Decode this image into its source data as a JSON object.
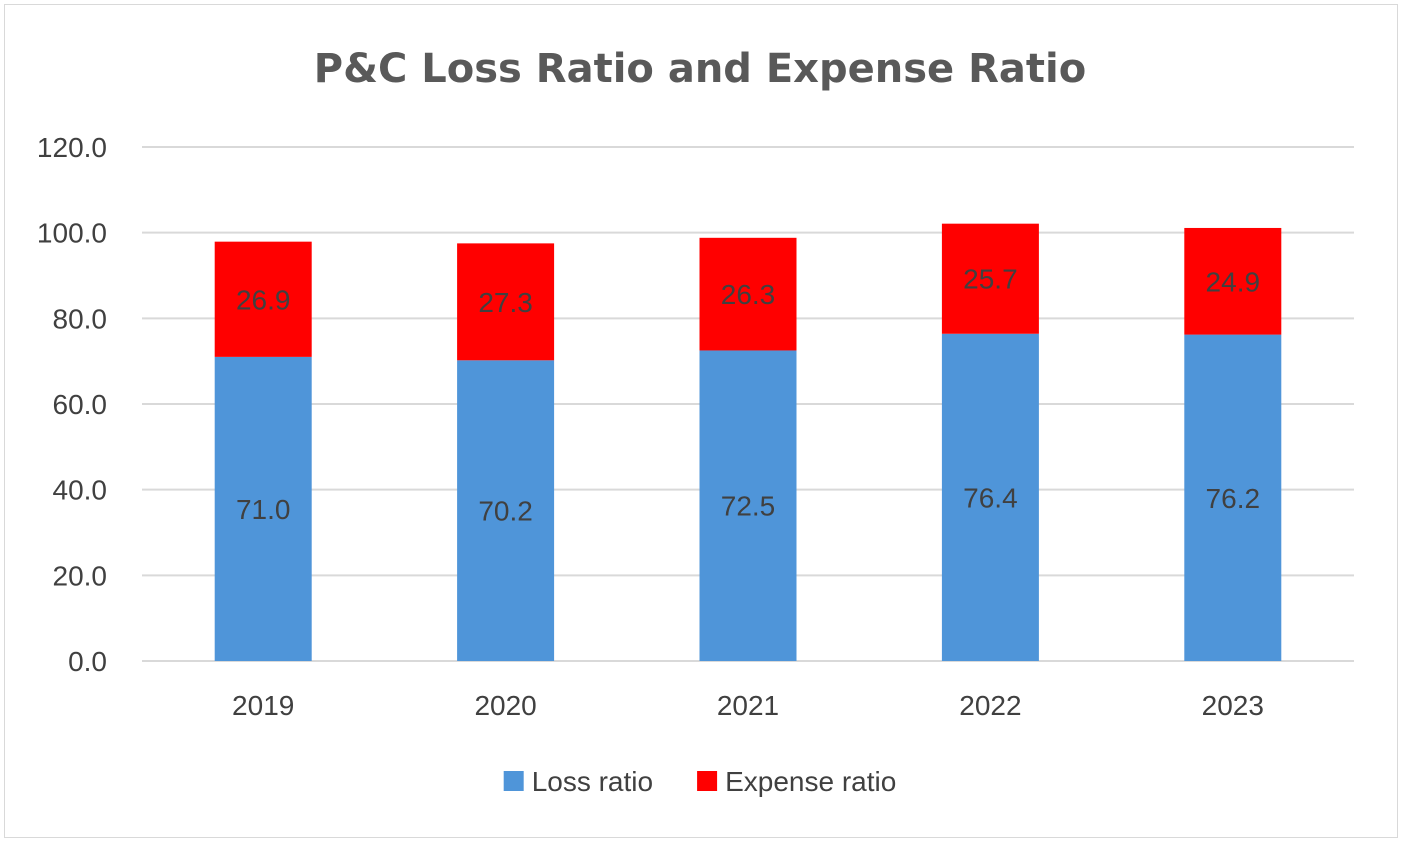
{
  "chart_data": {
    "type": "bar",
    "stacked": true,
    "title": "P&C Loss Ratio and Expense Ratio",
    "xlabel": "",
    "ylabel": "",
    "categories": [
      "2019",
      "2020",
      "2021",
      "2022",
      "2023"
    ],
    "series": [
      {
        "name": "Loss ratio",
        "color": "#4f95d9",
        "values": [
          71.0,
          70.2,
          72.5,
          76.4,
          76.2
        ]
      },
      {
        "name": "Expense ratio",
        "color": "#ff0000",
        "values": [
          26.9,
          27.3,
          26.3,
          25.7,
          24.9
        ]
      }
    ],
    "ylim": [
      0,
      120
    ],
    "yticks": [
      0,
      20,
      40,
      60,
      80,
      100,
      120
    ],
    "ytick_labels": [
      "0.0",
      "20.0",
      "40.0",
      "60.0",
      "80.0",
      "100.0",
      "120.0"
    ],
    "grid": true,
    "legend_position": "bottom",
    "data_labels": true,
    "data_label_color": "#404040",
    "gridline_color": "#d9d9d9"
  }
}
